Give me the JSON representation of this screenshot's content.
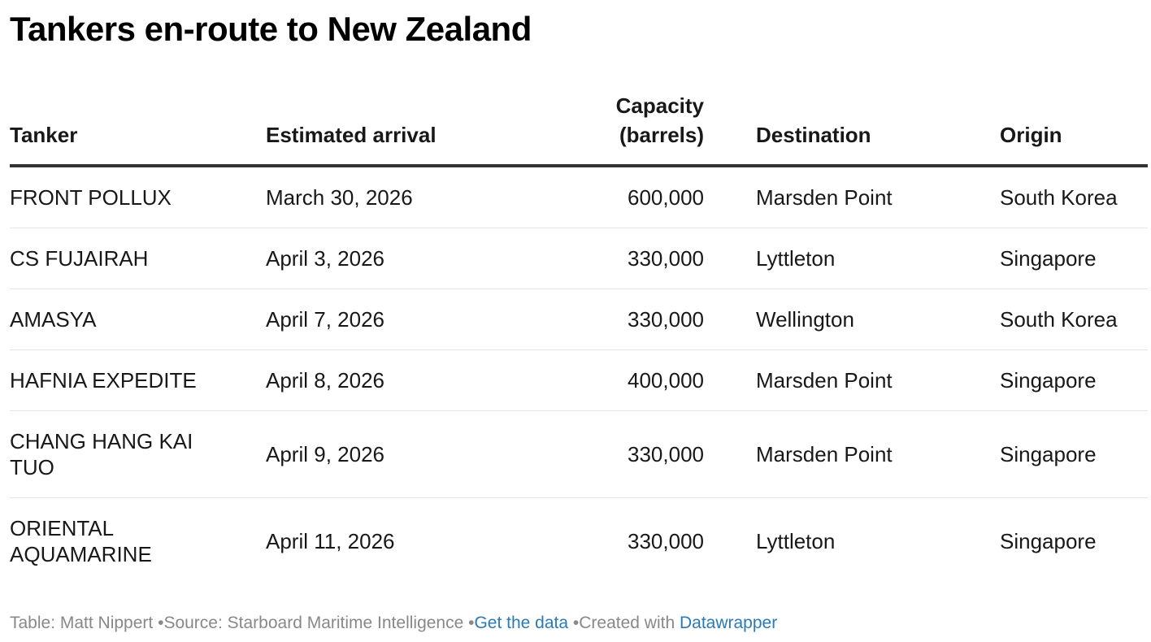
{
  "title": "Tankers en-route to New Zealand",
  "table": {
    "header": [
      "Tanker",
      "Estimated arrival",
      "Capacity (barrels)",
      "Destination",
      "Origin"
    ],
    "rows": [
      [
        "FRONT POLLUX",
        "March 30, 2026",
        "600,000",
        "Marsden Point",
        "South Korea"
      ],
      [
        "CS FUJAIRAH",
        "April 3, 2026",
        "330,000",
        "Lyttleton",
        "Singapore"
      ],
      [
        "AMASYA",
        "April 7, 2026",
        "330,000",
        "Wellington",
        "South Korea"
      ],
      [
        "HAFNIA EXPEDITE",
        "April 8, 2026",
        "400,000",
        "Marsden Point",
        "Singapore"
      ],
      [
        "CHANG HANG KAI TUO",
        "April 9, 2026",
        "330,000",
        "Marsden Point",
        "Singapore"
      ],
      [
        "ORIENTAL AQUAMARINE",
        "April 11, 2026",
        "330,000",
        "Lyttleton",
        "Singapore"
      ]
    ]
  },
  "footer": {
    "byline": "Table: Matt Nippert",
    "source": "Source: Starboard Maritime Intelligence",
    "data_link": "Get the data",
    "created_with": "Created with",
    "tool": "Datawrapper"
  }
}
